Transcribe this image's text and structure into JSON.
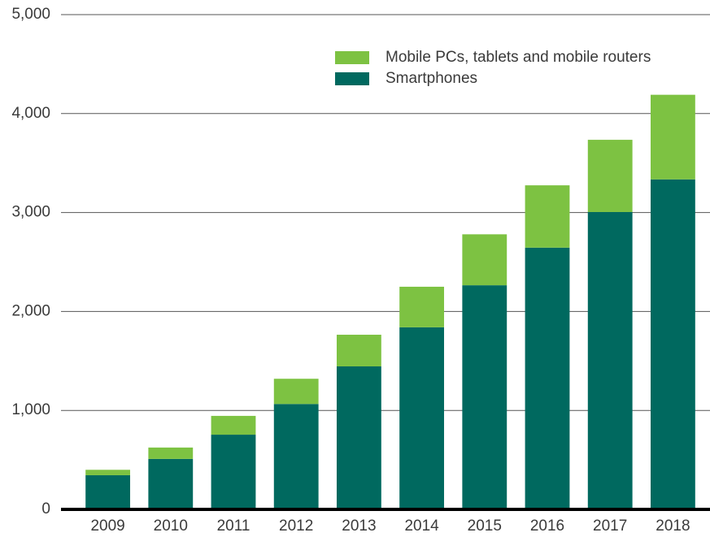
{
  "chart_data": {
    "type": "stacked_bar",
    "categories": [
      "2009",
      "2010",
      "2011",
      "2012",
      "2013",
      "2014",
      "2015",
      "2016",
      "2017",
      "2018"
    ],
    "series": [
      {
        "name": "Smartphones",
        "color": "#00695f",
        "values": [
          345,
          510,
          755,
          1065,
          1445,
          1840,
          2265,
          2645,
          3005,
          3335
        ]
      },
      {
        "name": "Mobile PCs, tablets and mobile routers",
        "color": "#7dc242",
        "values": [
          55,
          115,
          190,
          255,
          320,
          410,
          515,
          630,
          730,
          855
        ]
      }
    ],
    "ylim": [
      0,
      5000
    ],
    "yticks": [
      0,
      {
        "value": 1000,
        "label": "1,000"
      },
      {
        "value": 2000,
        "label": "2,000"
      },
      {
        "value": 3000,
        "label": "3,000"
      },
      {
        "value": 4000,
        "label": "4,000"
      },
      {
        "value": 5000,
        "label": "5,000"
      }
    ],
    "grid": true,
    "legend": "top-right"
  }
}
